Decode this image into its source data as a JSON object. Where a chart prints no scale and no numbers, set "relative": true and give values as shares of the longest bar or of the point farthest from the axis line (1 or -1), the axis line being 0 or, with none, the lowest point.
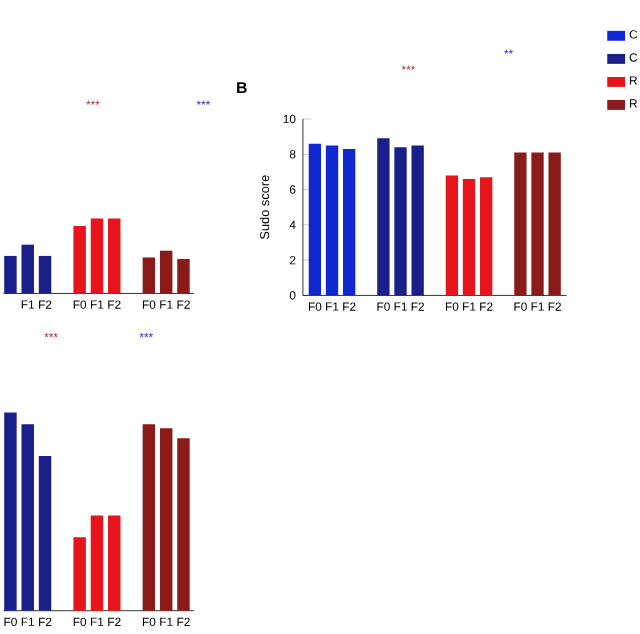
{
  "chart_data": [
    {
      "type": "bar",
      "relative": true,
      "tick_labels": "x",
      "categories": [
        null,
        "F1",
        "F2",
        "F0",
        "F1",
        "F2",
        "F0",
        "F1",
        "F2"
      ],
      "series": [
        {
          "color": "#1a1f8a",
          "values": [
            0.5,
            0.65,
            0.5,
            null,
            null,
            null,
            null,
            null,
            null
          ]
        },
        {
          "color": "#e8141c",
          "values": [
            null,
            null,
            null,
            0.9,
            1,
            1,
            null,
            null,
            null
          ]
        },
        {
          "color": "#8b1a1a",
          "values": [
            null,
            null,
            null,
            null,
            null,
            null,
            0.48,
            0.57,
            0.46
          ]
        }
      ],
      "annotations": [
        "***",
        "***"
      ]
    },
    {
      "type": "bar",
      "title": "B",
      "ylabel": "Sudo score",
      "ylim": [
        0,
        10
      ],
      "yticks": [
        0,
        2,
        4,
        6,
        8,
        10
      ],
      "legend": "right",
      "categories": [
        "F0",
        "F1",
        "F2",
        "F0",
        "F1",
        "F2",
        "F0",
        "F1",
        "F2",
        "F0",
        "F1",
        "F2"
      ],
      "series": [
        {
          "name": "C",
          "color": "#1028d0",
          "values": [
            8.6,
            8.5,
            8.3,
            null,
            null,
            null,
            null,
            null,
            null,
            null,
            null,
            null
          ]
        },
        {
          "name": "C",
          "color": "#1a1f8a",
          "values": [
            null,
            null,
            null,
            8.9,
            8.4,
            8.5,
            null,
            null,
            null,
            null,
            null,
            null
          ]
        },
        {
          "name": "R",
          "color": "#e8141c",
          "values": [
            null,
            null,
            null,
            null,
            null,
            null,
            6.8,
            6.6,
            6.7,
            null,
            null,
            null
          ]
        },
        {
          "name": "R",
          "color": "#8b1a1a",
          "values": [
            null,
            null,
            null,
            null,
            null,
            null,
            null,
            null,
            null,
            8.1,
            8.1,
            8.1
          ]
        }
      ],
      "annotations": [
        "***",
        "**"
      ]
    },
    {
      "type": "bar",
      "relative": true,
      "tick_labels": "x",
      "categories": [
        "F0",
        "F1",
        "F2",
        "F0",
        "F1",
        "F2",
        "F0",
        "F1",
        "F2"
      ],
      "series": [
        {
          "color": "#1a1f8a",
          "values": [
            1,
            0.94,
            0.78,
            null,
            null,
            null,
            null,
            null,
            null
          ]
        },
        {
          "color": "#e8141c",
          "values": [
            null,
            null,
            null,
            0.37,
            0.48,
            0.48,
            null,
            null,
            null
          ]
        },
        {
          "color": "#8b1a1a",
          "values": [
            null,
            null,
            null,
            null,
            null,
            null,
            0.94,
            0.92,
            0.87
          ]
        }
      ],
      "annotations": [
        "***",
        "***"
      ]
    }
  ]
}
